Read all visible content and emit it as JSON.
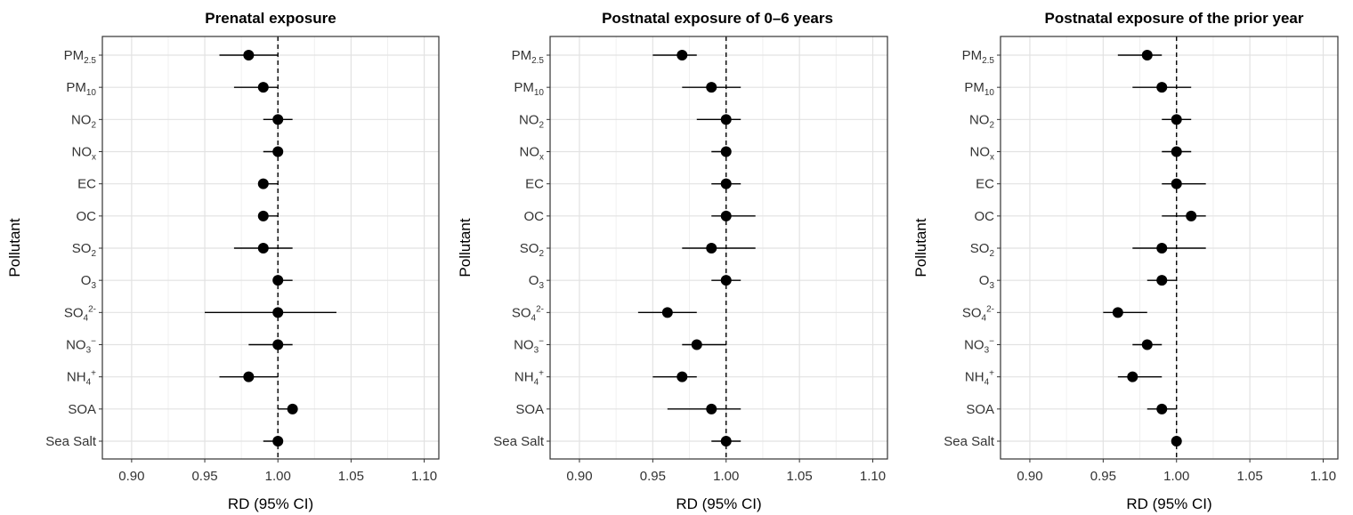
{
  "chart_data": [
    {
      "type": "scatter",
      "subtype": "forest-plot",
      "title": "Prenatal exposure",
      "xlabel": "RD (95% CI)",
      "ylabel": "Pollutant",
      "xlim": [
        0.88,
        1.11
      ],
      "xticks": [
        "0.90",
        "0.95",
        "1.00",
        "1.05",
        "1.10"
      ],
      "reference_line": 1.0,
      "grid": true,
      "categories": [
        "PM2.5",
        "PM10",
        "NO2",
        "NOx",
        "EC",
        "OC",
        "SO2",
        "O3",
        "SO42-",
        "NO3-",
        "NH4+",
        "SOA",
        "Sea Salt"
      ],
      "estimates": [
        0.98,
        0.99,
        1.0,
        1.0,
        0.99,
        0.99,
        0.99,
        1.0,
        1.0,
        1.0,
        0.98,
        1.01,
        1.0
      ],
      "ci_lower": [
        0.96,
        0.97,
        0.99,
        0.99,
        0.99,
        0.99,
        0.97,
        1.0,
        0.95,
        0.98,
        0.96,
        1.0,
        0.99
      ],
      "ci_upper": [
        1.0,
        1.0,
        1.01,
        1.0,
        1.0,
        1.0,
        1.01,
        1.01,
        1.04,
        1.01,
        1.0,
        1.01,
        1.0
      ]
    },
    {
      "type": "scatter",
      "subtype": "forest-plot",
      "title": "Postnatal exposure of 0–6 years",
      "xlabel": "RD (95% CI)",
      "ylabel": "Pollutant",
      "xlim": [
        0.88,
        1.11
      ],
      "xticks": [
        "0.90",
        "0.95",
        "1.00",
        "1.05",
        "1.10"
      ],
      "reference_line": 1.0,
      "grid": true,
      "categories": [
        "PM2.5",
        "PM10",
        "NO2",
        "NOx",
        "EC",
        "OC",
        "SO2",
        "O3",
        "SO42-",
        "NO3-",
        "NH4+",
        "SOA",
        "Sea Salt"
      ],
      "estimates": [
        0.97,
        0.99,
        1.0,
        1.0,
        1.0,
        1.0,
        0.99,
        1.0,
        0.96,
        0.98,
        0.97,
        0.99,
        1.0
      ],
      "ci_lower": [
        0.95,
        0.97,
        0.98,
        0.99,
        0.99,
        0.99,
        0.97,
        0.99,
        0.94,
        0.97,
        0.95,
        0.96,
        0.99
      ],
      "ci_upper": [
        0.98,
        1.01,
        1.01,
        1.0,
        1.01,
        1.02,
        1.02,
        1.01,
        0.98,
        1.0,
        0.98,
        1.01,
        1.01
      ]
    },
    {
      "type": "scatter",
      "subtype": "forest-plot",
      "title": "Postnatal exposure of the prior year",
      "xlabel": "RD (95% CI)",
      "ylabel": "Pollutant",
      "xlim": [
        0.88,
        1.11
      ],
      "xticks": [
        "0.90",
        "0.95",
        "1.00",
        "1.05",
        "1.10"
      ],
      "reference_line": 1.0,
      "grid": true,
      "categories": [
        "PM2.5",
        "PM10",
        "NO2",
        "NOx",
        "EC",
        "OC",
        "SO2",
        "O3",
        "SO42-",
        "NO3-",
        "NH4+",
        "SOA",
        "Sea Salt"
      ],
      "estimates": [
        0.98,
        0.99,
        1.0,
        1.0,
        1.0,
        1.01,
        0.99,
        0.99,
        0.96,
        0.98,
        0.97,
        0.99,
        1.0
      ],
      "ci_lower": [
        0.96,
        0.97,
        0.99,
        0.99,
        0.99,
        0.99,
        0.97,
        0.98,
        0.95,
        0.97,
        0.96,
        0.98,
        1.0
      ],
      "ci_upper": [
        0.99,
        1.01,
        1.01,
        1.01,
        1.02,
        1.02,
        1.02,
        1.0,
        0.98,
        0.99,
        0.99,
        1.0,
        1.0
      ]
    }
  ]
}
